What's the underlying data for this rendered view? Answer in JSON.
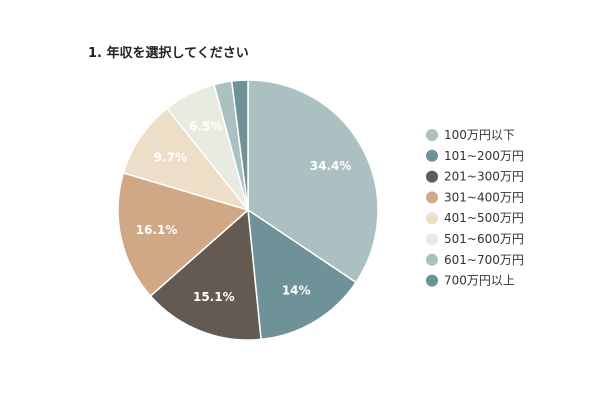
{
  "chart_data": {
    "type": "pie",
    "title": "1. 年収を選択してください",
    "legend_position": "right",
    "slices": [
      {
        "label": "100万円以下",
        "value": 34.4,
        "color": "#aac0c1",
        "data_label": "34.4%"
      },
      {
        "label": "101~200万円",
        "value": 14.0,
        "color": "#6e9297",
        "data_label": "14%"
      },
      {
        "label": "201~300万円",
        "value": 15.1,
        "color": "#655a52",
        "data_label": "15.1%"
      },
      {
        "label": "301~400万円",
        "value": 16.1,
        "color": "#d1a885",
        "data_label": "16.1%"
      },
      {
        "label": "401~500万円",
        "value": 9.7,
        "color": "#eddfc7",
        "data_label": "9.7%"
      },
      {
        "label": "501~600万円",
        "value": 6.5,
        "color": "#e9ebe0",
        "data_label": "6.5%"
      },
      {
        "label": "601~700万円",
        "value": 2.2,
        "color": "#aac0c1",
        "data_label": ""
      },
      {
        "label": "700万円以上",
        "value": 2.0,
        "color": "#6e9297",
        "data_label": ""
      }
    ]
  }
}
